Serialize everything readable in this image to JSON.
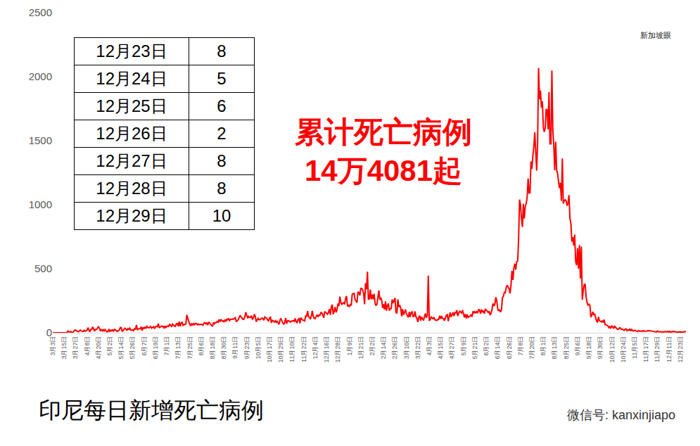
{
  "chart_data": {
    "type": "line",
    "title": "印尼每日新增死亡病例",
    "categories": [
      "3月3日",
      null,
      null,
      null,
      null,
      null,
      null,
      null,
      null,
      null,
      null,
      null,
      "3月15日",
      null,
      null,
      null,
      null,
      null,
      null,
      null,
      null,
      null,
      null,
      null,
      "3月27日",
      null,
      null,
      null,
      null,
      null,
      null,
      null,
      null,
      null,
      null,
      null,
      "4月8日",
      null,
      null,
      null,
      null,
      null,
      null,
      null,
      null,
      null,
      null,
      null,
      "4月20日",
      null,
      null,
      null,
      null,
      null,
      null,
      null,
      null,
      null,
      null,
      null,
      "5月2日",
      null,
      null,
      null,
      null,
      null,
      null,
      null,
      null,
      null,
      null,
      null,
      "5月14日",
      null,
      null,
      null,
      null,
      null,
      null,
      null,
      null,
      null,
      null,
      null,
      "5月26日",
      null,
      null,
      null,
      null,
      null,
      null,
      null,
      null,
      null,
      null,
      null,
      "6月7日",
      null,
      null,
      null,
      null,
      null,
      null,
      null,
      null,
      null,
      null,
      null,
      "6月19日",
      null,
      null,
      null,
      null,
      null,
      null,
      null,
      null,
      null,
      null,
      null,
      "7月1日",
      null,
      null,
      null,
      null,
      null,
      null,
      null,
      null,
      null,
      null,
      null,
      "7月13日",
      null,
      null,
      null,
      null,
      null,
      null,
      null,
      null,
      null,
      null,
      null,
      "7月25日",
      null,
      null,
      null,
      null,
      null,
      null,
      null,
      null,
      null,
      null,
      null,
      "8月6日",
      null,
      null,
      null,
      null,
      null,
      null,
      null,
      null,
      null,
      null,
      null,
      "8月18日",
      null,
      null,
      null,
      null,
      null,
      null,
      null,
      null,
      null,
      null,
      null,
      "8月30日",
      null,
      null,
      null,
      null,
      null,
      null,
      null,
      null,
      null,
      null,
      null,
      "9月11日",
      null,
      null,
      null,
      null,
      null,
      null,
      null,
      null,
      null,
      null,
      null,
      "9月23日",
      null,
      null,
      null,
      null,
      null,
      null,
      null,
      null,
      null,
      null,
      null,
      "10月5日",
      null,
      null,
      null,
      null,
      null,
      null,
      null,
      null,
      null,
      null,
      null,
      "10月17日",
      null,
      null,
      null,
      null,
      null,
      null,
      null,
      null,
      null,
      null,
      null,
      "10月29日",
      null,
      null,
      null,
      null,
      null,
      null,
      null,
      null,
      null,
      null,
      null,
      "11月10日",
      null,
      null,
      null,
      null,
      null,
      null,
      null,
      null,
      null,
      null,
      null,
      "11月22日",
      null,
      null,
      null,
      null,
      null,
      null,
      null,
      null,
      null,
      null,
      null,
      "12月4日",
      null,
      null,
      null,
      null,
      null,
      null,
      null,
      null,
      null,
      null,
      null,
      "12月16日",
      null,
      null,
      null,
      null,
      null,
      null,
      null,
      null,
      null,
      null,
      null,
      "12月28日",
      null,
      null,
      null,
      null,
      null,
      null,
      null,
      null,
      null,
      null,
      null,
      "1月9日",
      null,
      null,
      null,
      null,
      null,
      null,
      null,
      null,
      null,
      null,
      null,
      "1月21日",
      null,
      null,
      null,
      null,
      null,
      null,
      null,
      null,
      null,
      null,
      null,
      "2月2日",
      null,
      null,
      null,
      null,
      null,
      null,
      null,
      null,
      null,
      null,
      null,
      "2月14日",
      null,
      null,
      null,
      null,
      null,
      null,
      null,
      null,
      null,
      null,
      null,
      "2月26日",
      null,
      null,
      null,
      null,
      null,
      null,
      null,
      null,
      null,
      null,
      null,
      "3月10日",
      null,
      null,
      null,
      null,
      null,
      null,
      null,
      null,
      null,
      null,
      null,
      "3月22日",
      null,
      null,
      null,
      null,
      null,
      null,
      null,
      null,
      null,
      null,
      null,
      "4月3日",
      null,
      null,
      null,
      null,
      null,
      null,
      null,
      null,
      null,
      null,
      null,
      "4月15日",
      null,
      null,
      null,
      null,
      null,
      null,
      null,
      null,
      null,
      null,
      null,
      "4月27日",
      null,
      null,
      null,
      null,
      null,
      null,
      null,
      null,
      null,
      null,
      null,
      "5月9日",
      null,
      null,
      null,
      null,
      null,
      null,
      null,
      null,
      null,
      null,
      null,
      "5月21日",
      null,
      null,
      null,
      null,
      null,
      null,
      null,
      null,
      null,
      null,
      null,
      "6月2日",
      null,
      null,
      null,
      null,
      null,
      null,
      null,
      null,
      null,
      null,
      null,
      "6月14日",
      null,
      null,
      null,
      null,
      null,
      null,
      null,
      null,
      null,
      null,
      null,
      "6月26日",
      null,
      null,
      null,
      null,
      null,
      null,
      null,
      null,
      null,
      null,
      null,
      "7月8日",
      null,
      null,
      null,
      null,
      null,
      null,
      null,
      null,
      null,
      null,
      null,
      "7月20日",
      null,
      null,
      null,
      null,
      null,
      null,
      null,
      null,
      null,
      null,
      null,
      "8月1日",
      null,
      null,
      null,
      null,
      null,
      null,
      null,
      null,
      null,
      null,
      null,
      "8月13日",
      null,
      null,
      null,
      null,
      null,
      null,
      null,
      null,
      null,
      null,
      null,
      "8月25日",
      null,
      null,
      null,
      null,
      null,
      null,
      null,
      null,
      null,
      null,
      null,
      "9月6日",
      null,
      null,
      null,
      null,
      null,
      null,
      null,
      null,
      null,
      null,
      null,
      "9月18日",
      null,
      null,
      null,
      null,
      null,
      null,
      null,
      null,
      null,
      null,
      null,
      "9月30日",
      null,
      null,
      null,
      null,
      null,
      null,
      null,
      null,
      null,
      null,
      null,
      "10月12日",
      null,
      null,
      null,
      null,
      null,
      null,
      null,
      null,
      null,
      null,
      null,
      "10月24日",
      null,
      null,
      null,
      null,
      null,
      null,
      null,
      null,
      null,
      null,
      null,
      "11月5日",
      null,
      null,
      null,
      null,
      null,
      null,
      null,
      null,
      null,
      null,
      null,
      "11月17日",
      null,
      null,
      null,
      null,
      null,
      null,
      null,
      null,
      null,
      null,
      null,
      "11月29日",
      null,
      null,
      null,
      null,
      null,
      null,
      null,
      null,
      null,
      null,
      null,
      "12月11日",
      null,
      null,
      null,
      null,
      null,
      null,
      null,
      null,
      null,
      null,
      null,
      "12月23日",
      null,
      null,
      null,
      null,
      null,
      null
    ],
    "values": [
      0,
      0,
      0,
      0,
      0,
      0,
      0,
      0,
      1,
      0,
      2,
      1,
      1,
      0,
      1,
      2,
      14,
      7,
      7,
      10,
      1,
      6,
      9,
      20,
      20,
      15,
      12,
      8,
      14,
      21,
      13,
      11,
      10,
      19,
      12,
      14,
      19,
      40,
      26,
      7,
      26,
      26,
      46,
      26,
      13,
      26,
      26,
      35,
      47,
      37,
      17,
      24,
      15,
      27,
      11,
      25,
      13,
      7,
      8,
      28,
      9,
      21,
      15,
      23,
      13,
      26,
      20,
      12,
      10,
      16,
      20,
      41,
      40,
      13,
      16,
      28,
      35,
      29,
      17,
      32,
      26,
      36,
      21,
      21,
      23,
      16,
      31,
      28,
      61,
      25,
      31,
      33,
      31,
      47,
      16,
      43,
      31,
      45,
      33,
      50,
      41,
      38,
      43,
      49,
      36,
      43,
      48,
      32,
      47,
      50,
      47,
      71,
      38,
      45,
      51,
      53,
      49,
      34,
      54,
      41,
      50,
      53,
      49,
      69,
      58,
      46,
      68,
      58,
      52,
      50,
      70,
      71,
      50,
      87,
      50,
      76,
      84,
      58,
      65,
      65,
      68,
      139,
      117,
      95,
      66,
      57,
      74,
      57,
      74,
      62,
      73,
      73,
      62,
      68,
      62,
      64,
      65,
      65,
      59,
      74,
      79,
      69,
      79,
      59,
      81,
      79,
      65,
      55,
      50,
      79,
      69,
      79,
      79,
      88,
      82,
      104,
      86,
      105,
      92,
      93,
      85,
      102,
      88,
      105,
      100,
      112,
      96,
      105,
      107,
      107,
      106,
      111,
      118,
      89,
      92,
      101,
      118,
      135,
      124,
      117,
      105,
      105,
      124,
      160,
      140,
      114,
      128,
      121,
      120,
      133,
      103,
      116,
      144,
      128,
      86,
      104,
      113,
      102,
      102,
      108,
      114,
      111,
      97,
      123,
      120,
      113,
      100,
      93,
      116,
      121,
      77,
      100,
      91,
      84,
      93,
      81,
      90,
      78,
      65,
      101,
      112,
      90,
      75,
      65,
      82,
      115,
      70,
      93,
      94,
      88,
      83,
      92,
      91,
      95,
      89,
      113,
      85,
      79,
      104,
      110,
      74,
      118,
      104,
      100,
      96,
      92,
      130,
      128,
      169,
      127,
      120,
      106,
      130,
      171,
      130,
      113,
      110,
      125,
      141,
      124,
      138,
      136,
      157,
      156,
      140,
      117,
      166,
      158,
      153,
      145,
      159,
      185,
      140,
      203,
      219,
      144,
      166,
      201,
      159,
      179,
      228,
      210,
      282,
      237,
      219,
      232,
      234,
      222,
      268,
      286,
      207,
      214,
      202,
      220,
      214,
      302,
      306,
      308,
      259,
      247,
      235,
      320,
      314,
      291,
      346,
      346,
      336,
      305,
      223,
      387,
      339,
      476,
      262,
      264,
      338,
      261,
      298,
      262,
      304,
      232,
      211,
      223,
      269,
      330,
      258,
      276,
      251,
      194,
      223,
      181,
      245,
      172,
      212,
      228,
      173,
      188,
      189,
      260,
      232,
      258,
      271,
      159,
      151,
      261,
      201,
      216,
      193,
      128,
      185,
      139,
      157,
      182,
      147,
      128,
      120,
      162,
      123,
      159,
      163,
      127,
      128,
      166,
      125,
      114,
      84,
      122,
      133,
      94,
      123,
      109,
      96,
      126,
      151,
      117,
      136,
      447,
      98,
      102,
      123,
      116,
      110,
      120,
      101,
      99,
      96,
      103,
      105,
      133,
      108,
      131,
      112,
      111,
      94,
      116,
      136,
      141,
      91,
      125,
      158,
      123,
      140,
      159,
      131,
      157,
      153,
      176,
      131,
      154,
      171,
      161,
      154,
      177,
      147,
      120,
      146,
      113,
      143,
      120,
      127,
      130,
      142,
      124,
      168,
      153,
      165,
      155,
      165,
      154,
      184,
      174,
      149,
      183,
      159,
      171,
      149,
      187,
      175,
      171,
      156,
      168,
      138,
      150,
      181,
      229,
      209,
      222,
      277,
      251,
      189,
      170,
      181,
      161,
      180,
      274,
      285,
      316,
      313,
      354,
      371,
      357,
      343,
      307,
      373,
      483,
      413,
      504,
      539,
      493,
      555,
      559,
      728,
      1040,
      1001,
      893,
      826,
      1007,
      892,
      987,
      1008,
      1058,
      1205,
      1092,
      1093,
      1338,
      1280,
      1383,
      1449,
      1566,
      1415,
      1266,
      1487,
      2069,
      1824,
      1893,
      1759,
      1808,
      1604,
      1568,
      1598,
      1747,
      1739,
      1588,
      1881,
      1475,
      1475,
      2048,
      1579,
      1466,
      1270,
      1492,
      1270,
      1245,
      1180,
      1128,
      1171,
      1030,
      1361,
      1008,
      1030,
      1038,
      1030,
      992,
      1012,
      1075,
      892,
      856,
      711,
      747,
      680,
      766,
      557,
      527,
      661,
      500,
      685,
      423,
      673,
      258,
      331,
      375,
      382,
      278,
      236,
      216,
      223,
      214,
      122,
      137,
      164,
      140,
      148,
      114,
      90,
      84,
      124,
      94,
      90,
      85,
      93,
      80,
      102,
      63,
      63,
      57,
      53,
      39,
      50,
      33,
      53,
      47,
      33,
      50,
      41,
      32,
      26,
      27,
      38,
      37,
      27,
      28,
      20,
      18,
      27,
      30,
      16,
      22,
      19,
      31,
      14,
      26,
      16,
      13,
      20,
      15,
      12,
      9,
      16,
      12,
      13,
      11,
      11,
      17,
      11,
      13,
      12,
      14,
      16,
      17,
      18,
      15,
      13,
      11,
      9,
      9,
      6,
      6,
      13,
      8,
      8,
      8,
      6,
      4,
      8,
      6,
      10,
      8,
      7,
      11,
      5,
      11,
      5,
      5,
      10,
      7,
      10,
      7,
      4,
      3,
      7,
      7,
      8,
      5,
      6,
      2,
      8,
      8,
      10
    ],
    "color": "#ff0000",
    "ylim": [
      0,
      2500
    ],
    "yticks": [
      0,
      500,
      1000,
      1500,
      2000,
      2500
    ],
    "grid": false,
    "annotation": [
      "累计死亡病例",
      "14万4081起"
    ]
  },
  "table": {
    "rows": [
      [
        "12月23日",
        8
      ],
      [
        "12月24日",
        5
      ],
      [
        "12月25日",
        6
      ],
      [
        "12月26日",
        2
      ],
      [
        "12月27日",
        8
      ],
      [
        "12月28日",
        8
      ],
      [
        "12月29日",
        10
      ]
    ]
  },
  "logo": "新加坡眼",
  "watermark": "微信号: kanxinjiapo"
}
